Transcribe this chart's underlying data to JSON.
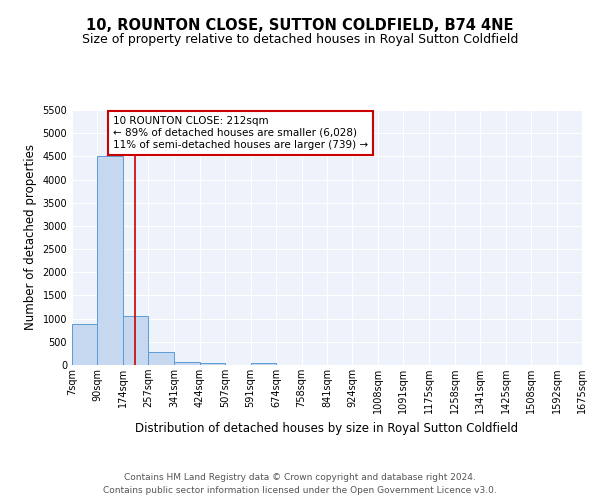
{
  "title": "10, ROUNTON CLOSE, SUTTON COLDFIELD, B74 4NE",
  "subtitle": "Size of property relative to detached houses in Royal Sutton Coldfield",
  "xlabel": "Distribution of detached houses by size in Royal Sutton Coldfield",
  "ylabel": "Number of detached properties",
  "footnote1": "Contains HM Land Registry data © Crown copyright and database right 2024.",
  "footnote2": "Contains public sector information licensed under the Open Government Licence v3.0.",
  "bar_edges": [
    7,
    90,
    174,
    257,
    341,
    424,
    507,
    591,
    674,
    758,
    841,
    924,
    1008,
    1091,
    1175,
    1258,
    1341,
    1425,
    1508,
    1592,
    1675
  ],
  "bar_heights": [
    880,
    4500,
    1050,
    280,
    75,
    50,
    0,
    50,
    0,
    0,
    0,
    0,
    0,
    0,
    0,
    0,
    0,
    0,
    0,
    0
  ],
  "bar_color": "#c5d8f0",
  "bar_edgecolor": "#5b9bd5",
  "property_value": 212,
  "redline_color": "#cc0000",
  "annotation_line1": "10 ROUNTON CLOSE: 212sqm",
  "annotation_line2": "← 89% of detached houses are smaller (6,028)",
  "annotation_line3": "11% of semi-detached houses are larger (739) →",
  "annotation_box_edgecolor": "#cc0000",
  "ylim": [
    0,
    5500
  ],
  "yticks": [
    0,
    500,
    1000,
    1500,
    2000,
    2500,
    3000,
    3500,
    4000,
    4500,
    5000,
    5500
  ],
  "tick_labels": [
    "7sqm",
    "90sqm",
    "174sqm",
    "257sqm",
    "341sqm",
    "424sqm",
    "507sqm",
    "591sqm",
    "674sqm",
    "758sqm",
    "841sqm",
    "924sqm",
    "1008sqm",
    "1091sqm",
    "1175sqm",
    "1258sqm",
    "1341sqm",
    "1425sqm",
    "1508sqm",
    "1592sqm",
    "1675sqm"
  ],
  "bg_color": "#eef3fb",
  "grid_color": "#ffffff",
  "title_fontsize": 10.5,
  "subtitle_fontsize": 9,
  "axis_label_fontsize": 8.5,
  "tick_fontsize": 7,
  "annotation_fontsize": 7.5,
  "footnote_fontsize": 6.5
}
